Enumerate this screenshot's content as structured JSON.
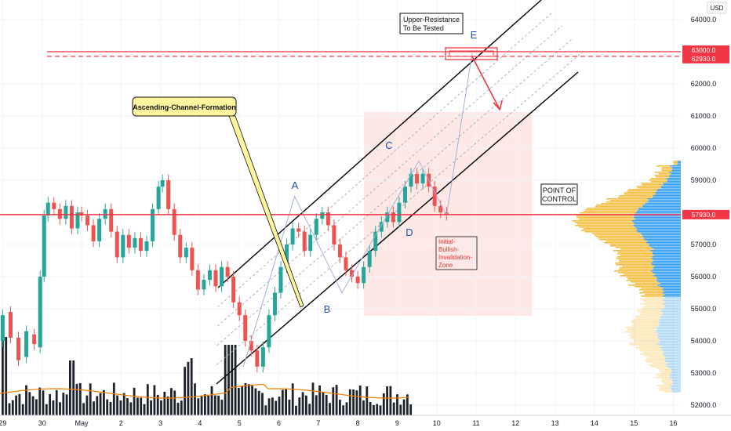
{
  "chart_data": {
    "type": "candlestick",
    "currency": "USD",
    "y_axis": {
      "ylim": [
        51600,
        64900
      ],
      "ticks": [
        "64000.0",
        "62000.0",
        "61000.0",
        "60000.0",
        "59000.0",
        "57000.0",
        "56000.0",
        "55000.0",
        "54000.0",
        "53000.0",
        "52000.0"
      ],
      "tick_values": [
        64000,
        62000,
        61000,
        60000,
        59000,
        57000,
        56000,
        55000,
        54000,
        53000,
        52000
      ]
    },
    "x_axis": {
      "tick_labels": [
        "29",
        "30",
        "May",
        "2",
        "3",
        "4",
        "5",
        "6",
        "7",
        "8",
        "9",
        "10",
        "11",
        "12",
        "13",
        "14",
        "15",
        "16"
      ],
      "tick_days": [
        -2,
        -1,
        0,
        1,
        2,
        3,
        4,
        5,
        6,
        7,
        8,
        9,
        10,
        11,
        12,
        13,
        14,
        15
      ]
    },
    "price_tags": [
      {
        "label": "63000.0",
        "value": 63000,
        "color": "#f23645"
      },
      {
        "label": "62930.0",
        "value": 62930,
        "color": "#f23645"
      },
      {
        "label": "57930.0",
        "value": 57930,
        "color": "#f23645"
      }
    ],
    "candles": [
      [
        -2.2,
        54500,
        53800
      ],
      [
        -2.0,
        54000,
        54800
      ],
      [
        -1.8,
        54900,
        54100
      ],
      [
        -1.6,
        54100,
        53400
      ],
      [
        -1.4,
        53500,
        54300
      ],
      [
        -1.2,
        54200,
        53900
      ],
      [
        -1.05,
        53800,
        56000
      ],
      [
        -0.95,
        56000,
        57900
      ],
      [
        -0.85,
        57900,
        58300
      ],
      [
        -0.7,
        58300,
        58100
      ],
      [
        -0.55,
        58100,
        57800
      ],
      [
        -0.4,
        57800,
        58200
      ],
      [
        -0.25,
        58200,
        57500
      ],
      [
        -0.1,
        57500,
        58000
      ],
      [
        0.0,
        58000,
        57900
      ],
      [
        0.15,
        57900,
        57600
      ],
      [
        0.3,
        57600,
        57100
      ],
      [
        0.45,
        57100,
        57800
      ],
      [
        0.6,
        57800,
        58100
      ],
      [
        0.75,
        58100,
        57400
      ],
      [
        0.9,
        57400,
        56600
      ],
      [
        1.05,
        56600,
        57300
      ],
      [
        1.2,
        57300,
        56900
      ],
      [
        1.35,
        56900,
        57200
      ],
      [
        1.5,
        57200,
        56800
      ],
      [
        1.65,
        56800,
        57100
      ],
      [
        1.8,
        57100,
        58100
      ],
      [
        1.95,
        58100,
        58800
      ],
      [
        2.05,
        58800,
        59000
      ],
      [
        2.2,
        59000,
        58100
      ],
      [
        2.35,
        58100,
        57300
      ],
      [
        2.5,
        57300,
        56600
      ],
      [
        2.65,
        56600,
        56900
      ],
      [
        2.8,
        56900,
        56200
      ],
      [
        2.95,
        56200,
        55600
      ],
      [
        3.1,
        55600,
        55900
      ],
      [
        3.25,
        55900,
        56200
      ],
      [
        3.4,
        56200,
        55700
      ],
      [
        3.55,
        55700,
        56300
      ],
      [
        3.7,
        56300,
        56000
      ],
      [
        3.85,
        56000,
        55200
      ],
      [
        4.0,
        55200,
        54800
      ],
      [
        4.15,
        54800,
        54000
      ],
      [
        4.3,
        54000,
        53700
      ],
      [
        4.45,
        53700,
        53200
      ],
      [
        4.6,
        53200,
        53800
      ],
      [
        4.75,
        53800,
        54800
      ],
      [
        4.9,
        54800,
        55500
      ],
      [
        5.05,
        55500,
        56300
      ],
      [
        5.2,
        56300,
        57000
      ],
      [
        5.35,
        57000,
        57500
      ],
      [
        5.5,
        57500,
        57400
      ],
      [
        5.65,
        57400,
        56800
      ],
      [
        5.8,
        56800,
        57300
      ],
      [
        5.95,
        57300,
        57800
      ],
      [
        6.1,
        57800,
        58000
      ],
      [
        6.25,
        58000,
        57600
      ],
      [
        6.4,
        57600,
        57000
      ],
      [
        6.55,
        57000,
        56600
      ],
      [
        6.7,
        56600,
        56200
      ],
      [
        6.85,
        56200,
        56000
      ],
      [
        7.0,
        56000,
        55800
      ],
      [
        7.15,
        55800,
        56300
      ],
      [
        7.3,
        56300,
        56800
      ],
      [
        7.45,
        56800,
        57400
      ],
      [
        7.6,
        57400,
        57700
      ],
      [
        7.75,
        57700,
        58000
      ],
      [
        7.9,
        58000,
        57700
      ],
      [
        8.05,
        57700,
        58300
      ],
      [
        8.2,
        58300,
        58800
      ],
      [
        8.35,
        58800,
        59200
      ],
      [
        8.5,
        59200,
        58900
      ],
      [
        8.65,
        58900,
        59200
      ],
      [
        8.8,
        59200,
        58800
      ],
      [
        8.95,
        58800,
        58200
      ],
      [
        9.1,
        58200,
        58000
      ],
      [
        9.25,
        58000,
        57930
      ]
    ],
    "volume_line_note": "",
    "annotations": {
      "ascending_channel": "Ascending-Channel-Formation",
      "upper_resistance_line1": "Upper-Resistance",
      "upper_resistance_line2": "To Be Tested",
      "poc_line1": "POINT OF",
      "poc_line2": "CONTROL",
      "invalidation_line1": "Initial-",
      "invalidation_line2": "Bullish-",
      "invalidation_line3": "Invalidation-",
      "invalidation_line4": "Zone",
      "wave_labels": [
        {
          "text": "A",
          "day": 5.4,
          "price": 59000
        },
        {
          "text": "B",
          "day": 6.6,
          "price": 55000
        },
        {
          "text": "C",
          "day": 8.55,
          "price": 60000
        },
        {
          "text": "D",
          "day": 9.2,
          "price": 57200
        },
        {
          "text": "E",
          "day": 10.0,
          "price": 63700
        }
      ]
    },
    "channel": {
      "upper": [
        [
          3.5,
          56000
        ],
        [
          11.0,
          63000
        ]
      ],
      "lower": [
        [
          3.5,
          51500
        ],
        [
          12.3,
          62300
        ]
      ]
    },
    "resistance_level": 63000,
    "poc_level": 57930,
    "colors": {
      "up": "#26a69a",
      "down": "#ef5350",
      "resistance": "#f23645",
      "volume": "#1e222d",
      "volume_ma": "#f57c00",
      "profile_up": "#2196f3",
      "profile_down": "#f5b82e",
      "zone": "#fde8e6"
    }
  },
  "axis": {
    "currency_label": "USD"
  }
}
